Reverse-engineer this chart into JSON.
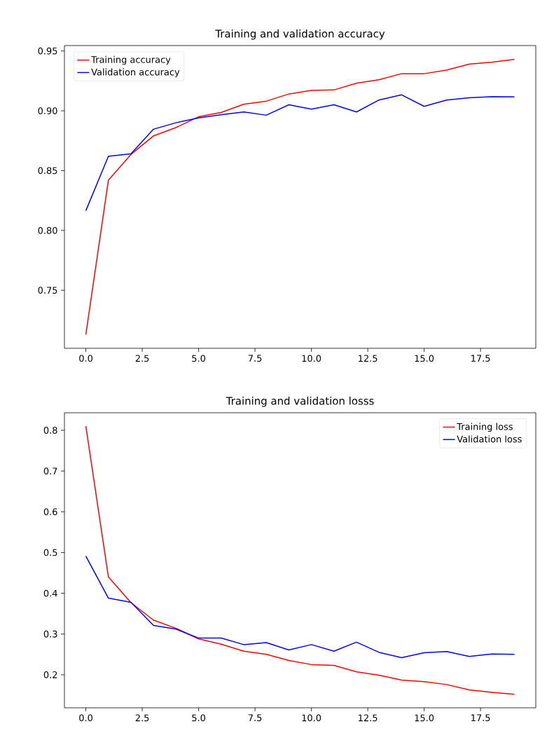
{
  "chart_data": [
    {
      "type": "line",
      "title": "Training and validation accuracy",
      "x": [
        0,
        1,
        2,
        3,
        4,
        5,
        6,
        7,
        8,
        9,
        10,
        11,
        12,
        13,
        14,
        15,
        16,
        17,
        18,
        19
      ],
      "series": [
        {
          "name": "Training accuracy",
          "color": "#ff0000",
          "values": [
            0.713,
            0.842,
            0.8635,
            0.879,
            0.886,
            0.895,
            0.8986,
            0.9055,
            0.908,
            0.914,
            0.917,
            0.9174,
            0.923,
            0.926,
            0.931,
            0.931,
            0.934,
            0.939,
            0.9406,
            0.943
          ]
        },
        {
          "name": "Validation accuracy",
          "color": "#0000ff",
          "values": [
            0.8165,
            0.862,
            0.864,
            0.8846,
            0.89,
            0.894,
            0.8966,
            0.899,
            0.8963,
            0.905,
            0.9014,
            0.905,
            0.899,
            0.909,
            0.9133,
            0.9037,
            0.909,
            0.9108,
            0.9118,
            0.9116
          ]
        }
      ],
      "xlim": [
        -0.95,
        19.95
      ],
      "ylim": [
        0.7015,
        0.9545
      ],
      "xticks": [
        {
          "value": 0,
          "label": "0.0"
        },
        {
          "value": 2.5,
          "label": "2.5"
        },
        {
          "value": 5,
          "label": "5.0"
        },
        {
          "value": 7.5,
          "label": "7.5"
        },
        {
          "value": 10,
          "label": "10.0"
        },
        {
          "value": 12.5,
          "label": "12.5"
        },
        {
          "value": 15,
          "label": "15.0"
        },
        {
          "value": 17.5,
          "label": "17.5"
        }
      ],
      "yticks": [
        {
          "value": 0.75,
          "label": "0.75"
        },
        {
          "value": 0.8,
          "label": "0.80"
        },
        {
          "value": 0.85,
          "label": "0.85"
        },
        {
          "value": 0.9,
          "label": "0.90"
        },
        {
          "value": 0.95,
          "label": "0.95"
        }
      ],
      "legend": "top left"
    },
    {
      "type": "line",
      "title": "Training and validation losss",
      "x": [
        0,
        1,
        2,
        3,
        4,
        5,
        6,
        7,
        8,
        9,
        10,
        11,
        12,
        13,
        14,
        15,
        16,
        17,
        18,
        19
      ],
      "series": [
        {
          "name": "Training loss",
          "color": "#ff0000",
          "values": [
            0.81,
            0.44,
            0.377,
            0.334,
            0.314,
            0.288,
            0.275,
            0.258,
            0.25,
            0.235,
            0.225,
            0.223,
            0.207,
            0.199,
            0.187,
            0.183,
            0.176,
            0.163,
            0.157,
            0.152
          ]
        },
        {
          "name": "Validation loss",
          "color": "#0000ff",
          "values": [
            0.491,
            0.388,
            0.378,
            0.321,
            0.312,
            0.29,
            0.29,
            0.274,
            0.279,
            0.261,
            0.274,
            0.258,
            0.28,
            0.255,
            0.242,
            0.254,
            0.257,
            0.245,
            0.251,
            0.25
          ]
        }
      ],
      "xlim": [
        -0.95,
        19.95
      ],
      "ylim": [
        0.119,
        0.843
      ],
      "xticks": [
        {
          "value": 0,
          "label": "0.0"
        },
        {
          "value": 2.5,
          "label": "2.5"
        },
        {
          "value": 5,
          "label": "5.0"
        },
        {
          "value": 7.5,
          "label": "7.5"
        },
        {
          "value": 10,
          "label": "10.0"
        },
        {
          "value": 12.5,
          "label": "12.5"
        },
        {
          "value": 15,
          "label": "15.0"
        },
        {
          "value": 17.5,
          "label": "17.5"
        }
      ],
      "yticks": [
        {
          "value": 0.2,
          "label": "0.2"
        },
        {
          "value": 0.3,
          "label": "0.3"
        },
        {
          "value": 0.4,
          "label": "0.4"
        },
        {
          "value": 0.5,
          "label": "0.5"
        },
        {
          "value": 0.6,
          "label": "0.6"
        },
        {
          "value": 0.7,
          "label": "0.7"
        },
        {
          "value": 0.8,
          "label": "0.8"
        }
      ],
      "legend": "top right"
    }
  ]
}
